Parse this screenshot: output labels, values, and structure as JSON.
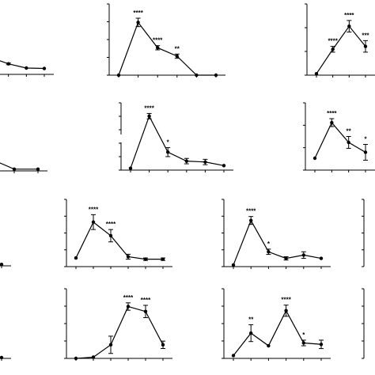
{
  "chart_data": [
    {
      "id": "r1c1",
      "type": "line",
      "y": [
        0.4,
        0.25,
        0.15,
        0.14
      ],
      "err": [
        0.05,
        0.02,
        0,
        0
      ],
      "sig": [
        "***",
        "",
        "",
        ""
      ]
    },
    {
      "id": "r1c2",
      "type": "line",
      "y": [
        0,
        2.5,
        1.3,
        0.9,
        0,
        0
      ],
      "err": [
        0,
        0.2,
        0.1,
        0.1,
        0,
        0
      ],
      "sig": [
        "",
        "****",
        "****",
        "**",
        "",
        ""
      ]
    },
    {
      "id": "r1c3",
      "type": "line",
      "y": [
        0.05,
        0.9,
        1.7,
        1.0
      ],
      "err": [
        0,
        0.1,
        0.2,
        0.2
      ],
      "sig": [
        "",
        "****",
        "****",
        "***"
      ]
    },
    {
      "id": "r2c1",
      "type": "line",
      "y": [
        0.35,
        0.05,
        0.05
      ],
      "err": [
        0.2,
        0,
        0
      ],
      "sig": [
        "",
        "",
        ""
      ]
    },
    {
      "id": "r2c2",
      "type": "line",
      "y": [
        0.1,
        3.0,
        1.0,
        0.5,
        0.45,
        0.25
      ],
      "err": [
        0,
        0.15,
        0.25,
        0.15,
        0.15,
        0
      ],
      "sig": [
        "",
        "****",
        "*",
        "",
        "",
        ""
      ]
    },
    {
      "id": "r2c3",
      "type": "line",
      "y": [
        0.6,
        2.4,
        1.4,
        0.9
      ],
      "err": [
        0,
        0.2,
        0.3,
        0.4
      ],
      "sig": [
        "",
        "****",
        "**",
        "*"
      ]
    },
    {
      "id": "r3c1",
      "type": "line",
      "y": [
        0.15,
        0.1
      ],
      "err": [
        0,
        0
      ],
      "sig": [
        "",
        ""
      ]
    },
    {
      "id": "r3c2",
      "type": "line",
      "y": [
        0.35,
        1.8,
        1.25,
        0.4,
        0.3,
        0.3
      ],
      "err": [
        0,
        0.3,
        0.25,
        0.1,
        0.05,
        0.05
      ],
      "sig": [
        "",
        "****",
        "****",
        "",
        "",
        ""
      ]
    },
    {
      "id": "r3c3",
      "type": "line",
      "y": [
        0.05,
        1.4,
        0.45,
        0.25,
        0.35,
        0.25
      ],
      "err": [
        0,
        0.12,
        0.08,
        0.05,
        0.1,
        0
      ],
      "sig": [
        "",
        "****",
        "*",
        "",
        "",
        ""
      ]
    },
    {
      "id": "r4c1",
      "type": "line",
      "y": [
        0.05,
        0.05
      ],
      "err": [
        0,
        0
      ],
      "sig": [
        "",
        ""
      ]
    },
    {
      "id": "r4c2",
      "type": "line",
      "y": [
        0,
        0.05,
        0.55,
        2.1,
        1.9,
        0.55
      ],
      "err": [
        0,
        0,
        0.35,
        0.15,
        0.25,
        0.15
      ],
      "sig": [
        "",
        "",
        "",
        "****",
        "****",
        ""
      ]
    },
    {
      "id": "r4c3",
      "type": "line",
      "y": [
        0.1,
        0.9,
        0.45,
        1.7,
        0.55,
        0.5
      ],
      "err": [
        0,
        0.3,
        0,
        0.2,
        0.1,
        0.15
      ],
      "sig": [
        "",
        "**",
        "",
        "****",
        "*",
        ""
      ]
    }
  ]
}
